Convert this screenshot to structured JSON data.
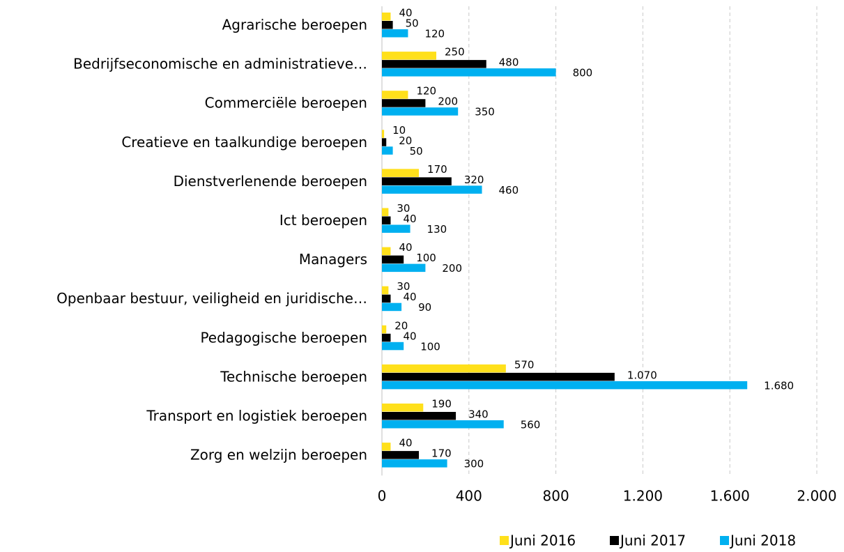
{
  "chart_data": {
    "type": "bar",
    "orientation": "horizontal",
    "categories": [
      "Agrarische beroepen",
      "Bedrijfseconomische en administratieve…",
      "Commerciële beroepen",
      "Creatieve en taalkundige beroepen",
      "Dienstverlenende beroepen",
      "Ict beroepen",
      "Managers",
      "Openbaar bestuur, veiligheid en juridische…",
      "Pedagogische beroepen",
      "Technische beroepen",
      "Transport en logistiek beroepen",
      "Zorg en welzijn beroepen"
    ],
    "series": [
      {
        "name": "Juni 2016",
        "color": "#FFE01B",
        "values": [
          40,
          250,
          120,
          10,
          170,
          30,
          40,
          30,
          20,
          570,
          190,
          40
        ],
        "value_labels": [
          "40",
          "250",
          "120",
          "10",
          "170",
          "30",
          "40",
          "30",
          "20",
          "570",
          "190",
          "40"
        ]
      },
      {
        "name": "Juni 2017",
        "color": "#000000",
        "values": [
          50,
          480,
          200,
          20,
          320,
          40,
          100,
          40,
          40,
          1070,
          340,
          170
        ],
        "value_labels": [
          "50",
          "480",
          "200",
          "20",
          "320",
          "40",
          "100",
          "40",
          "40",
          "1.070",
          "340",
          "170"
        ]
      },
      {
        "name": "Juni 2018",
        "color": "#00B0F0",
        "values": [
          120,
          800,
          350,
          50,
          460,
          130,
          200,
          90,
          100,
          1680,
          560,
          300
        ],
        "value_labels": [
          "120",
          "800",
          "350",
          "50",
          "460",
          "130",
          "200",
          "90",
          "100",
          "1.680",
          "560",
          "300"
        ]
      }
    ],
    "xlim": [
      0,
      2000
    ],
    "xticks": [
      0,
      400,
      800,
      {
        "value": 1200,
        "label": "1.200"
      },
      {
        "value": 1600,
        "label": "1.600"
      },
      {
        "value": 2000,
        "label": "2.000"
      }
    ],
    "grid": true,
    "legend": "bottom-right"
  }
}
